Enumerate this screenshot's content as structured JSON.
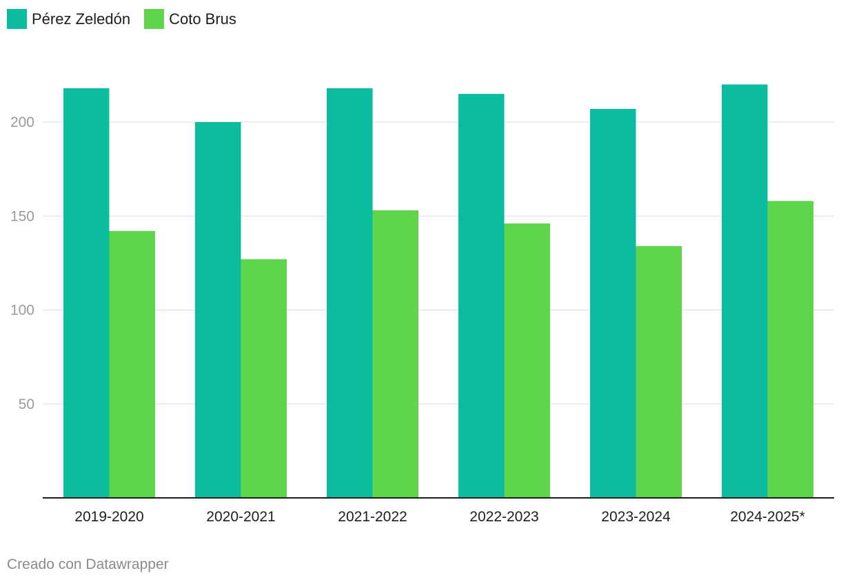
{
  "legend": [
    {
      "label": "Pérez Zeledón",
      "color": "#0bbc9f"
    },
    {
      "label": "Coto Brus",
      "color": "#5fd54b"
    }
  ],
  "chart_data": {
    "type": "bar",
    "categories": [
      "2019-2020",
      "2020-2021",
      "2021-2022",
      "2022-2023",
      "2023-2024",
      "2024-2025*"
    ],
    "series": [
      {
        "name": "Pérez Zeledón",
        "color": "#0bbc9f",
        "values": [
          218,
          200,
          218,
          215,
          207,
          220
        ]
      },
      {
        "name": "Coto Brus",
        "color": "#5fd54b",
        "values": [
          142,
          127,
          153,
          146,
          134,
          158
        ]
      }
    ],
    "yticks": [
      50,
      100,
      150,
      200
    ],
    "ylim": [
      0,
      220
    ],
    "grid": true,
    "legend_position": "top-left",
    "title": "",
    "xlabel": "",
    "ylabel": ""
  },
  "footer": "Creado con Datawrapper"
}
